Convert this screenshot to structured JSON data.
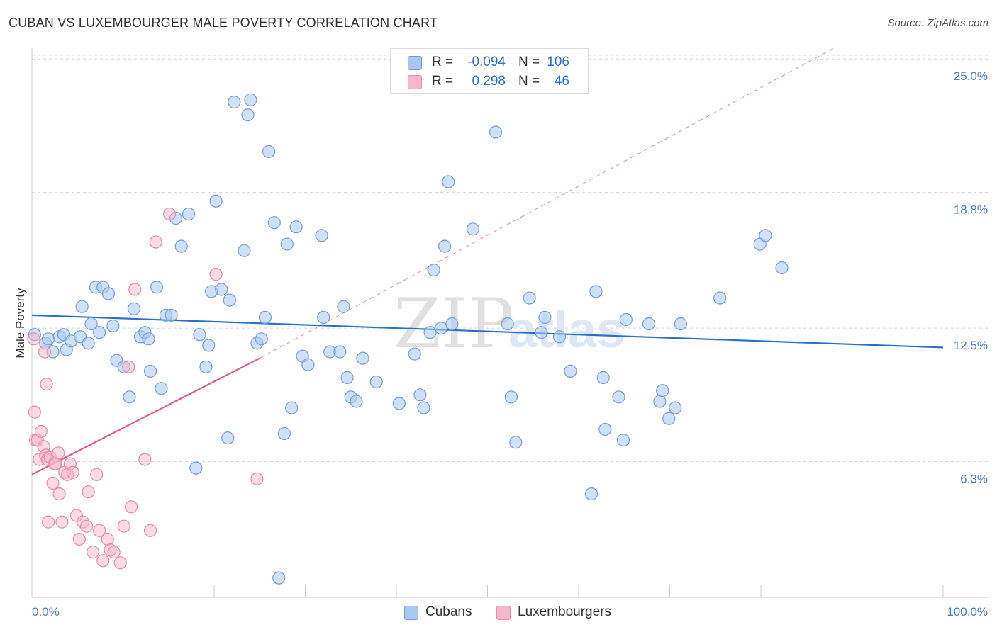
{
  "title": "CUBAN VS LUXEMBOURGER MALE POVERTY CORRELATION CHART",
  "source": "Source: ZipAtlas.com",
  "watermark": {
    "zip": "ZIP",
    "atlas": "atlas"
  },
  "colors": {
    "cubans_fill": "#a9c8f0",
    "cubans_stroke": "#6e9fdc",
    "cubans_line": "#2a6fc9",
    "lux_fill": "#f7b6ca",
    "lux_stroke": "#e88aa8",
    "lux_line": "#e0608a",
    "grid": "#d8d8d8",
    "tick_text": "#4a7fc8"
  },
  "legend": {
    "rows": [
      {
        "r_label": "R =",
        "r_value": "-0.094",
        "n_label": "N =",
        "n_value": "106"
      },
      {
        "r_label": "R =",
        "r_value": "0.298",
        "n_label": "N =",
        "n_value": "46"
      }
    ]
  },
  "bottom_legend": {
    "cubans": "Cubans",
    "luxembourgers": "Luxembourgers"
  },
  "chart_data": {
    "type": "scatter",
    "title": "CUBAN VS LUXEMBOURGER MALE POVERTY CORRELATION CHART",
    "xlabel": "",
    "ylabel": "Male Poverty",
    "xlim": [
      0,
      100
    ],
    "ylim": [
      0,
      25.5
    ],
    "x_tick_labels": [
      "0.0%",
      "100.0%"
    ],
    "y_ticks": [
      {
        "value": 6.3,
        "label": "6.3%"
      },
      {
        "value": 12.5,
        "label": "12.5%"
      },
      {
        "value": 18.8,
        "label": "18.8%"
      },
      {
        "value": 25.0,
        "label": "25.0%"
      }
    ],
    "legend_position": "top-center",
    "series": [
      {
        "name": "Cubans",
        "r": -0.094,
        "n": 106,
        "trend": {
          "x0": 0,
          "y0": 13.1,
          "x1": 100,
          "y1": 11.6
        },
        "points": [
          [
            0.3,
            12.2
          ],
          [
            1.5,
            11.8
          ],
          [
            1.8,
            12.0
          ],
          [
            2.3,
            11.4
          ],
          [
            3.0,
            12.1
          ],
          [
            3.5,
            12.2
          ],
          [
            3.8,
            11.5
          ],
          [
            4.3,
            11.9
          ],
          [
            5.3,
            12.1
          ],
          [
            5.5,
            13.5
          ],
          [
            6.2,
            11.8
          ],
          [
            6.5,
            12.7
          ],
          [
            7.0,
            14.4
          ],
          [
            7.4,
            12.3
          ],
          [
            7.8,
            14.4
          ],
          [
            8.4,
            14.1
          ],
          [
            8.9,
            12.6
          ],
          [
            9.3,
            11.0
          ],
          [
            10.1,
            10.7
          ],
          [
            10.7,
            9.3
          ],
          [
            11.2,
            13.4
          ],
          [
            11.9,
            12.1
          ],
          [
            12.4,
            12.3
          ],
          [
            12.8,
            12.0
          ],
          [
            13.0,
            10.5
          ],
          [
            13.7,
            14.4
          ],
          [
            14.2,
            9.7
          ],
          [
            14.7,
            13.1
          ],
          [
            15.3,
            13.1
          ],
          [
            15.8,
            17.6
          ],
          [
            16.4,
            16.3
          ],
          [
            17.2,
            17.8
          ],
          [
            18.0,
            6.0
          ],
          [
            18.4,
            12.2
          ],
          [
            19.1,
            10.7
          ],
          [
            19.4,
            11.7
          ],
          [
            19.7,
            14.2
          ],
          [
            20.2,
            18.4
          ],
          [
            20.8,
            14.3
          ],
          [
            21.5,
            7.4
          ],
          [
            21.7,
            13.8
          ],
          [
            22.2,
            23.0
          ],
          [
            23.3,
            16.1
          ],
          [
            23.7,
            22.4
          ],
          [
            24.0,
            23.1
          ],
          [
            24.7,
            11.8
          ],
          [
            25.2,
            12.0
          ],
          [
            25.6,
            13.0
          ],
          [
            26.0,
            20.7
          ],
          [
            26.6,
            17.4
          ],
          [
            27.1,
            0.9
          ],
          [
            27.7,
            7.6
          ],
          [
            28.0,
            16.4
          ],
          [
            28.5,
            8.8
          ],
          [
            29.0,
            17.2
          ],
          [
            29.7,
            11.2
          ],
          [
            30.3,
            10.8
          ],
          [
            31.8,
            16.8
          ],
          [
            32.0,
            13.0
          ],
          [
            32.7,
            11.4
          ],
          [
            33.8,
            11.4
          ],
          [
            34.2,
            13.5
          ],
          [
            34.6,
            10.2
          ],
          [
            35.0,
            9.3
          ],
          [
            35.6,
            9.1
          ],
          [
            36.3,
            11.1
          ],
          [
            37.8,
            10.0
          ],
          [
            40.3,
            9.0
          ],
          [
            42.0,
            11.3
          ],
          [
            42.6,
            9.4
          ],
          [
            43.0,
            8.8
          ],
          [
            43.7,
            12.3
          ],
          [
            44.1,
            15.2
          ],
          [
            44.9,
            12.5
          ],
          [
            45.3,
            16.3
          ],
          [
            45.7,
            19.3
          ],
          [
            46.1,
            12.7
          ],
          [
            48.4,
            17.1
          ],
          [
            50.9,
            21.6
          ],
          [
            52.2,
            12.7
          ],
          [
            52.6,
            9.3
          ],
          [
            53.1,
            7.2
          ],
          [
            54.6,
            13.9
          ],
          [
            55.9,
            12.3
          ],
          [
            56.3,
            13.0
          ],
          [
            57.9,
            12.1
          ],
          [
            59.1,
            10.5
          ],
          [
            61.4,
            4.8
          ],
          [
            61.9,
            14.2
          ],
          [
            62.7,
            10.2
          ],
          [
            62.9,
            7.8
          ],
          [
            64.4,
            9.3
          ],
          [
            64.9,
            7.3
          ],
          [
            65.2,
            12.9
          ],
          [
            67.7,
            12.7
          ],
          [
            68.9,
            9.1
          ],
          [
            69.2,
            9.6
          ],
          [
            69.9,
            8.3
          ],
          [
            70.6,
            8.8
          ],
          [
            71.2,
            12.7
          ],
          [
            75.5,
            13.9
          ],
          [
            79.9,
            16.4
          ],
          [
            80.5,
            16.8
          ],
          [
            82.3,
            15.3
          ]
        ]
      },
      {
        "name": "Luxembourgers",
        "r": 0.298,
        "n": 46,
        "trend": {
          "x0": 0,
          "y0": 5.7,
          "x1": 25,
          "y1": 11.1
        },
        "trend_extension": {
          "x0": 25,
          "y0": 11.1,
          "x1": 88,
          "y1": 25.5
        },
        "points": [
          [
            0.2,
            12.0
          ],
          [
            0.3,
            8.6
          ],
          [
            0.4,
            7.3
          ],
          [
            0.6,
            7.3
          ],
          [
            0.8,
            6.4
          ],
          [
            1.0,
            7.7
          ],
          [
            1.3,
            7.0
          ],
          [
            1.4,
            11.4
          ],
          [
            1.5,
            6.6
          ],
          [
            1.6,
            9.9
          ],
          [
            1.7,
            6.4
          ],
          [
            1.8,
            3.5
          ],
          [
            2.0,
            6.5
          ],
          [
            2.3,
            5.3
          ],
          [
            2.5,
            6.2
          ],
          [
            2.6,
            6.2
          ],
          [
            2.9,
            6.7
          ],
          [
            3.0,
            4.8
          ],
          [
            3.3,
            3.5
          ],
          [
            3.6,
            5.8
          ],
          [
            3.9,
            5.7
          ],
          [
            4.2,
            6.2
          ],
          [
            4.5,
            5.8
          ],
          [
            4.9,
            3.8
          ],
          [
            5.2,
            2.7
          ],
          [
            5.6,
            3.5
          ],
          [
            6.0,
            3.3
          ],
          [
            6.2,
            4.9
          ],
          [
            6.7,
            2.1
          ],
          [
            7.1,
            5.7
          ],
          [
            7.4,
            3.1
          ],
          [
            7.8,
            1.7
          ],
          [
            8.3,
            2.7
          ],
          [
            8.6,
            2.2
          ],
          [
            9.0,
            2.1
          ],
          [
            9.7,
            1.6
          ],
          [
            10.1,
            3.3
          ],
          [
            10.6,
            10.7
          ],
          [
            10.9,
            4.2
          ],
          [
            11.3,
            14.3
          ],
          [
            12.4,
            6.4
          ],
          [
            13.0,
            3.1
          ],
          [
            13.6,
            16.5
          ],
          [
            15.1,
            17.8
          ],
          [
            20.2,
            15.0
          ],
          [
            24.7,
            5.5
          ]
        ]
      }
    ]
  }
}
